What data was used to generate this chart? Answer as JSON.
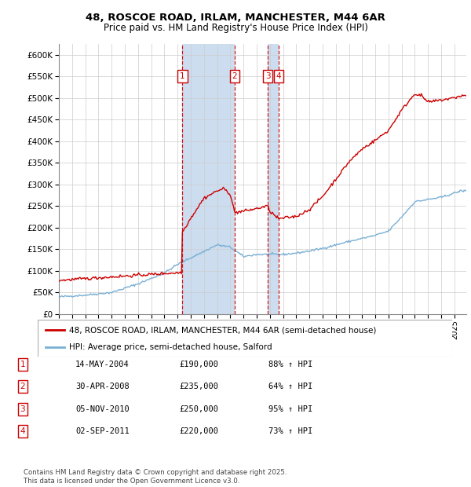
{
  "title1": "48, ROSCOE ROAD, IRLAM, MANCHESTER, M44 6AR",
  "title2": "Price paid vs. HM Land Registry's House Price Index (HPI)",
  "ylim": [
    0,
    625000
  ],
  "yticks": [
    0,
    50000,
    100000,
    150000,
    200000,
    250000,
    300000,
    350000,
    400000,
    450000,
    500000,
    550000,
    600000
  ],
  "ytick_labels": [
    "£0",
    "£50K",
    "£100K",
    "£150K",
    "£200K",
    "£250K",
    "£300K",
    "£350K",
    "£400K",
    "£450K",
    "£500K",
    "£550K",
    "£600K"
  ],
  "legend_line1": "48, ROSCOE ROAD, IRLAM, MANCHESTER, M44 6AR (semi-detached house)",
  "legend_line2": "HPI: Average price, semi-detached house, Salford",
  "transactions": [
    {
      "num": 1,
      "date": "14-MAY-2004",
      "price": 190000,
      "pct": "88%",
      "dir": "↑",
      "year": 2004.37
    },
    {
      "num": 2,
      "date": "30-APR-2008",
      "price": 235000,
      "pct": "64%",
      "dir": "↑",
      "year": 2008.33
    },
    {
      "num": 3,
      "date": "05-NOV-2010",
      "price": 250000,
      "pct": "95%",
      "dir": "↑",
      "year": 2010.84
    },
    {
      "num": 4,
      "date": "02-SEP-2011",
      "price": 220000,
      "pct": "73%",
      "dir": "↑",
      "year": 2011.67
    }
  ],
  "footer": "Contains HM Land Registry data © Crown copyright and database right 2025.\nThis data is licensed under the Open Government Licence v3.0.",
  "red_color": "#cc0000",
  "blue_color": "#7ab0d4",
  "shaded_color": "#ccddf0",
  "xlim_left": 1995,
  "xlim_right": 2025.9,
  "hpi_keypoints_x": [
    1995,
    1997,
    1999,
    2001,
    2003,
    2004,
    2005,
    2006,
    2007,
    2008,
    2009,
    2010,
    2011,
    2012,
    2013,
    2014,
    2015,
    2016,
    2017,
    2018,
    2019,
    2020,
    2021,
    2022,
    2023,
    2024,
    2025.5
  ],
  "hpi_keypoints_y": [
    40000,
    44000,
    50000,
    70000,
    95000,
    115000,
    130000,
    145000,
    160000,
    155000,
    133000,
    138000,
    138000,
    138000,
    141000,
    146000,
    152000,
    160000,
    168000,
    175000,
    182000,
    192000,
    225000,
    260000,
    265000,
    270000,
    285000
  ],
  "prop_keypoints_x": [
    1995,
    1996,
    1997,
    1998,
    1999,
    2000,
    2001,
    2002,
    2003,
    2004.3,
    2004.37,
    2005,
    2006,
    2007,
    2007.5,
    2008,
    2008.33,
    2009,
    2010,
    2010.84,
    2011,
    2011.67,
    2012,
    2013,
    2014,
    2015,
    2016,
    2017,
    2018,
    2019,
    2020,
    2021,
    2022,
    2022.5,
    2023,
    2024,
    2025,
    2025.5
  ],
  "prop_keypoints_y": [
    78000,
    80000,
    82000,
    84000,
    86000,
    88000,
    90000,
    92000,
    94000,
    96000,
    190000,
    222000,
    268000,
    285000,
    290000,
    278000,
    235000,
    238000,
    244000,
    250000,
    238000,
    220000,
    222000,
    226000,
    242000,
    272000,
    312000,
    352000,
    382000,
    402000,
    425000,
    472000,
    510000,
    505000,
    490000,
    495000,
    500000,
    505000
  ]
}
